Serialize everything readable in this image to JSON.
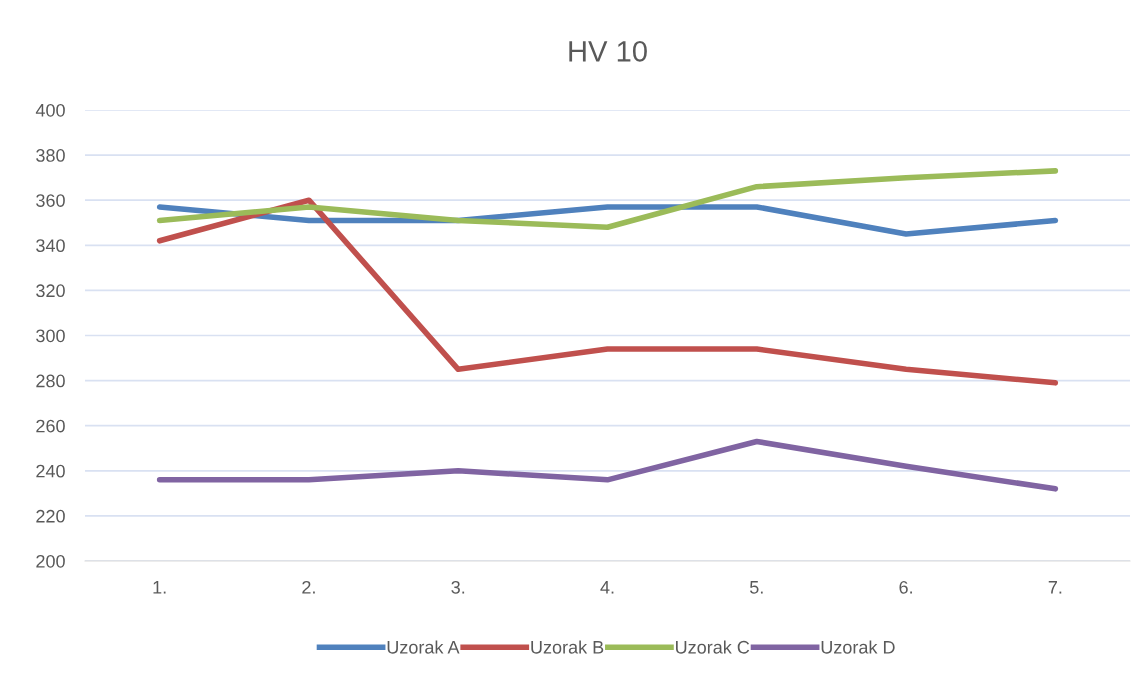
{
  "chart_data": {
    "type": "line",
    "title": "HV 10",
    "categories": [
      "1.",
      "2.",
      "3.",
      "4.",
      "5.",
      "6.",
      "7."
    ],
    "series": [
      {
        "name": "Uzorak A",
        "color": "#4f81bd",
        "values": [
          357,
          351,
          351,
          357,
          357,
          345,
          351
        ]
      },
      {
        "name": "Uzorak B",
        "color": "#c0504d",
        "values": [
          342,
          360,
          285,
          294,
          294,
          285,
          279
        ]
      },
      {
        "name": "Uzorak C",
        "color": "#9bbb59",
        "values": [
          351,
          357,
          351,
          348,
          366,
          370,
          373
        ]
      },
      {
        "name": "Uzorak D",
        "color": "#8064a2",
        "values": [
          236,
          236,
          240,
          236,
          253,
          242,
          232
        ]
      }
    ],
    "ylim": [
      200,
      400
    ],
    "yticks": [
      200,
      220,
      240,
      260,
      280,
      300,
      320,
      340,
      360,
      380,
      400
    ],
    "grid": "y",
    "legend": "bottom",
    "marker": "none",
    "line_style": "solid"
  }
}
